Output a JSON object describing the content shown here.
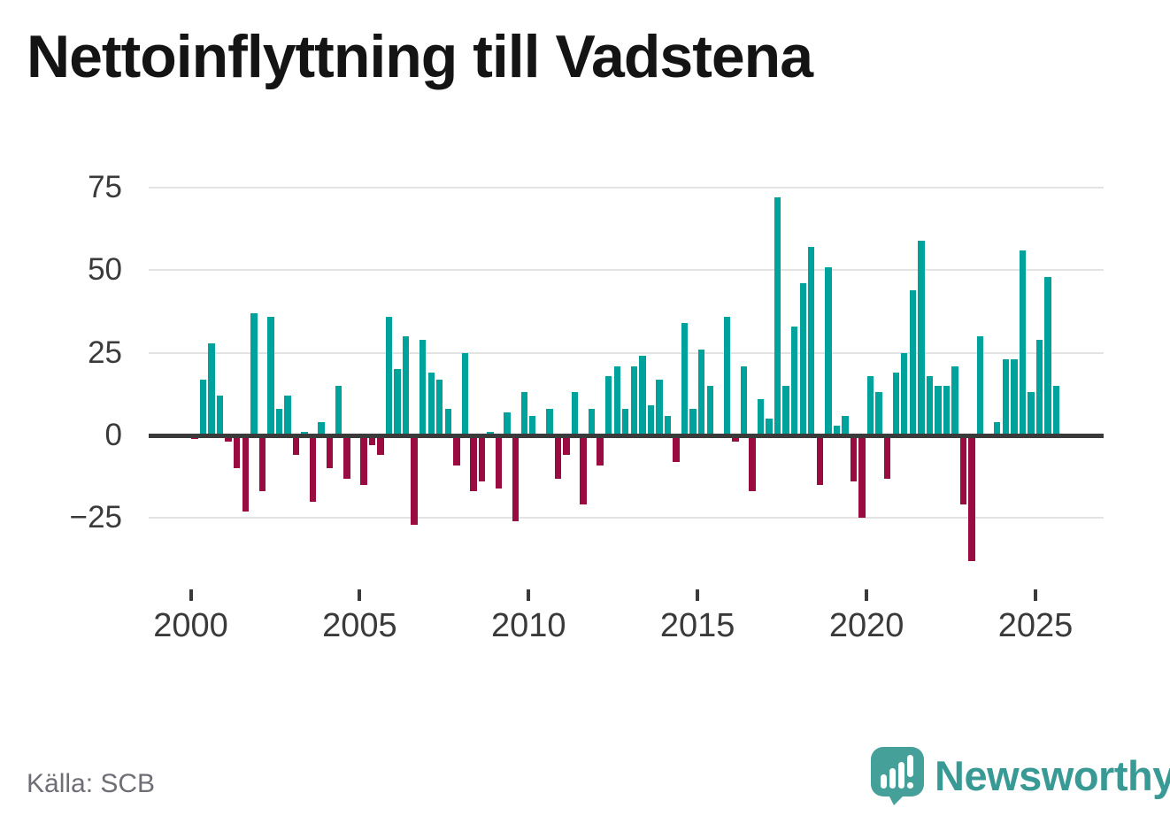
{
  "header": {
    "title": "Nettoinflyttning till Vadstena"
  },
  "footer": {
    "source_label": "Källa: SCB",
    "brand": "Newsworthy",
    "brand_color": "#399a95",
    "logo_icon": "speech-bubble-with-bar-chart-and-exclamation"
  },
  "chart_data": {
    "type": "bar",
    "title": "Nettoinflyttning till Vadstena",
    "xlabel": "",
    "ylabel": "",
    "legend": "none",
    "grid": "horizontal",
    "ylim": [
      -40,
      80
    ],
    "y_ticks": [
      75,
      50,
      25,
      0,
      -25
    ],
    "y_tick_labels": [
      "75",
      "50",
      "25",
      "0",
      "−25"
    ],
    "x_ticks": [
      2000,
      2005,
      2010,
      2015,
      2020,
      2025
    ],
    "x_tick_labels": [
      "2000",
      "2005",
      "2010",
      "2015",
      "2020",
      "2025"
    ],
    "positive_color": "#00a29c",
    "negative_color": "#9a0b42",
    "gridline_color": "#e3e3e3",
    "axis_color": "#3a3a3a",
    "quarters": [
      "2000Q1",
      "2000Q2",
      "2000Q3",
      "2000Q4",
      "2001Q1",
      "2001Q2",
      "2001Q3",
      "2001Q4",
      "2002Q1",
      "2002Q2",
      "2002Q3",
      "2002Q4",
      "2003Q1",
      "2003Q2",
      "2003Q3",
      "2003Q4",
      "2004Q1",
      "2004Q2",
      "2004Q3",
      "2004Q4",
      "2005Q1",
      "2005Q2",
      "2005Q3",
      "2005Q4",
      "2006Q1",
      "2006Q2",
      "2006Q3",
      "2006Q4",
      "2007Q1",
      "2007Q2",
      "2007Q3",
      "2007Q4",
      "2008Q1",
      "2008Q2",
      "2008Q3",
      "2008Q4",
      "2009Q1",
      "2009Q2",
      "2009Q3",
      "2009Q4",
      "2010Q1",
      "2010Q2",
      "2010Q3",
      "2010Q4",
      "2011Q1",
      "2011Q2",
      "2011Q3",
      "2011Q4",
      "2012Q1",
      "2012Q2",
      "2012Q3",
      "2012Q4",
      "2013Q1",
      "2013Q2",
      "2013Q3",
      "2013Q4",
      "2014Q1",
      "2014Q2",
      "2014Q3",
      "2014Q4",
      "2015Q1",
      "2015Q2",
      "2015Q3",
      "2015Q4",
      "2016Q1",
      "2016Q2",
      "2016Q3",
      "2016Q4",
      "2017Q1",
      "2017Q2",
      "2017Q3",
      "2017Q4",
      "2018Q1",
      "2018Q2",
      "2018Q3",
      "2018Q4",
      "2019Q1",
      "2019Q2",
      "2019Q3",
      "2019Q4",
      "2020Q1",
      "2020Q2",
      "2020Q3",
      "2020Q4",
      "2021Q1",
      "2021Q2",
      "2021Q3",
      "2021Q4",
      "2022Q1",
      "2022Q2",
      "2022Q3",
      "2022Q4",
      "2023Q1",
      "2023Q2",
      "2023Q3",
      "2023Q4",
      "2024Q1",
      "2024Q2",
      "2024Q3",
      "2024Q4",
      "2025Q1",
      "2025Q2",
      "2025Q3"
    ],
    "values": [
      -1,
      17,
      28,
      12,
      -2,
      -10,
      -23,
      37,
      -17,
      36,
      8,
      12,
      -6,
      1,
      -20,
      4,
      -10,
      15,
      -13,
      0,
      -15,
      -3,
      -6,
      36,
      20,
      30,
      -27,
      29,
      19,
      17,
      8,
      -9,
      25,
      -17,
      -14,
      1,
      -16,
      7,
      -26,
      13,
      6,
      0,
      8,
      -13,
      -6,
      13,
      -21,
      8,
      -9,
      18,
      21,
      8,
      21,
      24,
      9,
      17,
      6,
      -8,
      34,
      8,
      26,
      15,
      0,
      36,
      -2,
      21,
      -17,
      11,
      5,
      72,
      15,
      33,
      46,
      57,
      -15,
      51,
      3,
      6,
      -14,
      -25,
      18,
      13,
      -13,
      19,
      25,
      44,
      59,
      18,
      15,
      15,
      21,
      -21,
      -38,
      30,
      0,
      4,
      23,
      23,
      56,
      13,
      29,
      48,
      15
    ]
  }
}
